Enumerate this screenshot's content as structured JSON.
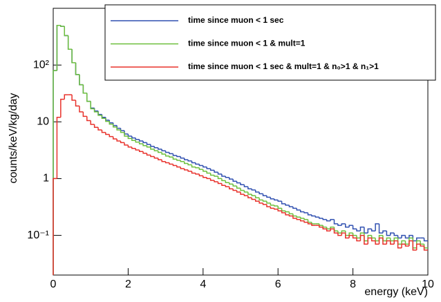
{
  "chart_data": {
    "type": "histogram",
    "log_y": true,
    "xlabel": "energy (keV)",
    "ylabel": "counts/keV/kg/day",
    "bins": [
      0,
      0.1,
      0.2,
      0.3,
      0.4,
      0.5,
      0.6,
      0.7,
      0.8,
      0.9,
      1,
      1.1,
      1.2,
      1.3,
      1.4,
      1.5,
      1.6,
      1.7,
      1.8,
      1.9,
      2,
      2.1,
      2.2,
      2.3,
      2.4,
      2.5,
      2.6,
      2.7,
      2.8,
      2.9,
      3,
      3.1,
      3.2,
      3.3,
      3.4,
      3.5,
      3.6,
      3.7,
      3.8,
      3.9,
      4,
      4.1,
      4.2,
      4.3,
      4.4,
      4.5,
      4.6,
      4.7,
      4.8,
      4.9,
      5,
      5.1,
      5.2,
      5.3,
      5.4,
      5.5,
      5.6,
      5.7,
      5.8,
      5.9,
      6,
      6.1,
      6.2,
      6.3,
      6.4,
      6.5,
      6.6,
      6.7,
      6.8,
      6.9,
      7,
      7.1,
      7.2,
      7.3,
      7.4,
      7.5,
      7.6,
      7.7,
      7.8,
      7.9,
      8,
      8.1,
      8.2,
      8.3,
      8.4,
      8.5,
      8.6,
      8.7,
      8.8,
      8.9,
      9,
      9.1,
      9.2,
      9.3,
      9.4,
      9.5,
      9.6,
      9.7,
      9.8,
      9.9,
      10
    ],
    "series": [
      {
        "name": "time since muon < 1 sec",
        "color": "#2f4fb0",
        "values": [
          80,
          500,
          480,
          330,
          190,
          110,
          68,
          45,
          32,
          23,
          17.5,
          15.5,
          13.5,
          12,
          10.7,
          9.6,
          8.6,
          7.7,
          7,
          6.1,
          5.6,
          5.2,
          4.9,
          4.6,
          4.3,
          4.0,
          3.7,
          3.5,
          3.3,
          3.1,
          2.9,
          2.75,
          2.55,
          2.45,
          2.3,
          2.15,
          2.05,
          1.9,
          1.8,
          1.7,
          1.6,
          1.5,
          1.4,
          1.3,
          1.2,
          1.1,
          1.05,
          0.98,
          0.9,
          0.84,
          0.78,
          0.72,
          0.66,
          0.63,
          0.58,
          0.54,
          0.5,
          0.47,
          0.44,
          0.42,
          0.4,
          0.36,
          0.34,
          0.32,
          0.3,
          0.28,
          0.26,
          0.25,
          0.23,
          0.22,
          0.21,
          0.2,
          0.19,
          0.18,
          0.19,
          0.16,
          0.15,
          0.16,
          0.14,
          0.15,
          0.13,
          0.12,
          0.14,
          0.11,
          0.13,
          0.12,
          0.16,
          0.11,
          0.12,
          0.1,
          0.11,
          0.1,
          0.09,
          0.1,
          0.09,
          0.1,
          0.08,
          0.09,
          0.09,
          0.08
        ]
      },
      {
        "name": "time since muon < 1 & mult=1",
        "color": "#6cbf3c",
        "values": [
          80,
          500,
          480,
          330,
          190,
          110,
          68,
          45,
          32,
          23,
          17,
          15,
          13,
          11.5,
          10.2,
          9.1,
          8.1,
          7.2,
          6.5,
          5.6,
          5.1,
          4.7,
          4.4,
          4.1,
          3.8,
          3.6,
          3.3,
          3.1,
          2.9,
          2.7,
          2.5,
          2.4,
          2.2,
          2.1,
          2.0,
          1.85,
          1.75,
          1.6,
          1.55,
          1.45,
          1.35,
          1.25,
          1.15,
          1.1,
          1.0,
          0.92,
          0.85,
          0.8,
          0.74,
          0.68,
          0.62,
          0.58,
          0.53,
          0.5,
          0.46,
          0.42,
          0.4,
          0.37,
          0.34,
          0.33,
          0.3,
          0.27,
          0.26,
          0.24,
          0.22,
          0.21,
          0.2,
          0.19,
          0.17,
          0.16,
          0.16,
          0.15,
          0.14,
          0.13,
          0.14,
          0.12,
          0.11,
          0.12,
          0.1,
          0.11,
          0.1,
          0.09,
          0.11,
          0.08,
          0.1,
          0.09,
          0.08,
          0.1,
          0.08,
          0.09,
          0.08,
          0.09,
          0.07,
          0.08,
          0.07,
          0.09,
          0.06,
          0.08,
          0.07,
          0.06
        ]
      },
      {
        "name": "time since muon < 1 sec & mult=1 & n₀>1 & n₁>1",
        "color": "#e8302a",
        "values": [
          1,
          12,
          25,
          30,
          30,
          24,
          19,
          15,
          12.5,
          10.5,
          9,
          8,
          7.2,
          6.5,
          6,
          5.5,
          5,
          4.6,
          4.3,
          3.9,
          3.6,
          3.4,
          3.2,
          3.0,
          2.8,
          2.6,
          2.45,
          2.3,
          2.15,
          2.0,
          1.9,
          1.8,
          1.7,
          1.6,
          1.5,
          1.42,
          1.35,
          1.25,
          1.2,
          1.12,
          1.05,
          1.0,
          0.93,
          0.88,
          0.82,
          0.76,
          0.72,
          0.66,
          0.62,
          0.58,
          0.53,
          0.5,
          0.46,
          0.43,
          0.4,
          0.37,
          0.35,
          0.32,
          0.3,
          0.29,
          0.27,
          0.25,
          0.23,
          0.22,
          0.2,
          0.19,
          0.18,
          0.17,
          0.16,
          0.15,
          0.15,
          0.14,
          0.13,
          0.12,
          0.13,
          0.11,
          0.1,
          0.11,
          0.09,
          0.1,
          0.09,
          0.08,
          0.1,
          0.07,
          0.09,
          0.08,
          0.07,
          0.09,
          0.07,
          0.08,
          0.07,
          0.08,
          0.06,
          0.07,
          0.065,
          0.08,
          0.055,
          0.07,
          0.065,
          0.055
        ]
      }
    ],
    "xlim": [
      0,
      10
    ],
    "xticks": [
      0,
      2,
      4,
      6,
      8,
      10
    ],
    "ylim": [
      0.02,
      1000
    ],
    "yticks": [
      {
        "value": 0.1,
        "label": "10⁻¹"
      },
      1,
      10,
      {
        "value": 100,
        "label": "10²"
      }
    ],
    "legend": "upper right"
  }
}
